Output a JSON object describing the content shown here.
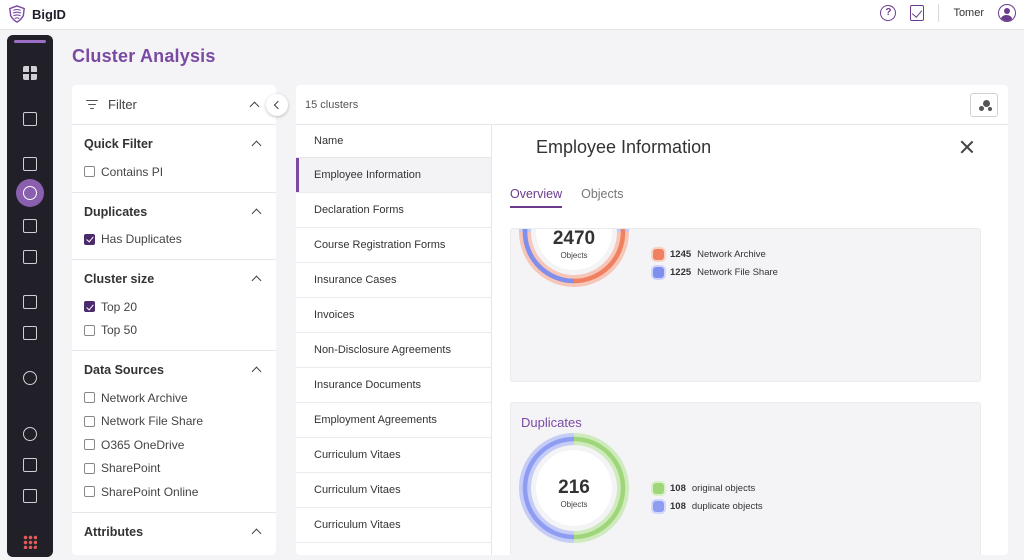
{
  "topbar": {
    "brand": "BigID",
    "help_glyph": "?",
    "user_name": "Tomer",
    "icons": [
      "help-icon",
      "tasks-icon",
      "user-icon"
    ]
  },
  "page": {
    "title": "Cluster Analysis"
  },
  "filter": {
    "title": "Filter",
    "sections": [
      {
        "title": "Quick Filter",
        "options": [
          {
            "label": "Contains PI",
            "checked": false
          }
        ]
      },
      {
        "title": "Duplicates",
        "options": [
          {
            "label": "Has Duplicates",
            "checked": true
          }
        ]
      },
      {
        "title": "Cluster size",
        "options": [
          {
            "label": "Top 20",
            "checked": true
          },
          {
            "label": "Top 50",
            "checked": false
          }
        ]
      },
      {
        "title": "Data Sources",
        "options": [
          {
            "label": "Network Archive",
            "checked": false
          },
          {
            "label": "Network File Share",
            "checked": false
          },
          {
            "label": "O365 OneDrive",
            "checked": false
          },
          {
            "label": "SharePoint",
            "checked": false
          },
          {
            "label": "SharePoint Online",
            "checked": false
          }
        ]
      },
      {
        "title": "Attributes",
        "options": []
      }
    ]
  },
  "clusters": {
    "count_label": "15 clusters",
    "column_header": "Name",
    "rows": [
      "Employee Information",
      "Declaration Forms",
      "Course Registration Forms",
      "Insurance Cases",
      "Invoices",
      "Non-Disclosure Agreements",
      "Insurance Documents",
      "Employment Agreements",
      "Curriculum Vitaes",
      "Curriculum Vitaes",
      "Curriculum Vitaes"
    ],
    "selected_index": 0
  },
  "detail": {
    "title": "Employee Information",
    "tabs": [
      {
        "label": "Overview",
        "active": true
      },
      {
        "label": "Objects",
        "active": false
      }
    ],
    "objects_card": {
      "total": "2470",
      "unit": "Objects",
      "legend": [
        {
          "value": "1245",
          "label": "Network Archive",
          "color": "#f08060"
        },
        {
          "value": "1225",
          "label": "Network File Share",
          "color": "#7e8ff0"
        }
      ]
    },
    "duplicates_card": {
      "title": "Duplicates",
      "total": "216",
      "unit": "Objects",
      "legend": [
        {
          "value": "108",
          "label": "original objects",
          "color": "#9fd67a"
        },
        {
          "value": "108",
          "label": "duplicate objects",
          "color": "#8e9cf2"
        }
      ]
    }
  },
  "colors": {
    "accent": "#7a4aa3",
    "rail": "#212028",
    "checked": "#4a2a6a"
  }
}
